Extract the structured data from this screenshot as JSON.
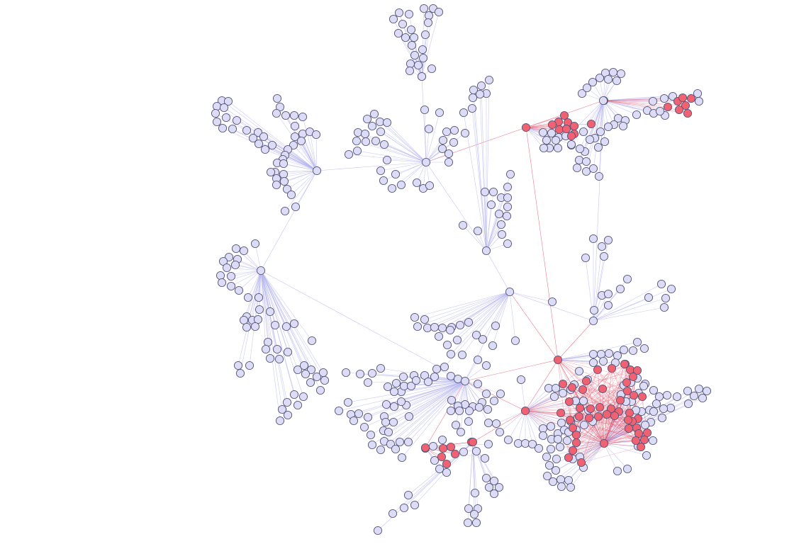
{
  "graph": {
    "type": "network",
    "colors": {
      "background": "#ffffff",
      "node_default_fill": "#dcdcf7",
      "node_highlight_fill": "#f06272",
      "node_stroke": "#55557a",
      "edge_default": "#b4b4ee",
      "edge_highlight": "#e0506a"
    },
    "legend": [],
    "labels": []
  }
}
